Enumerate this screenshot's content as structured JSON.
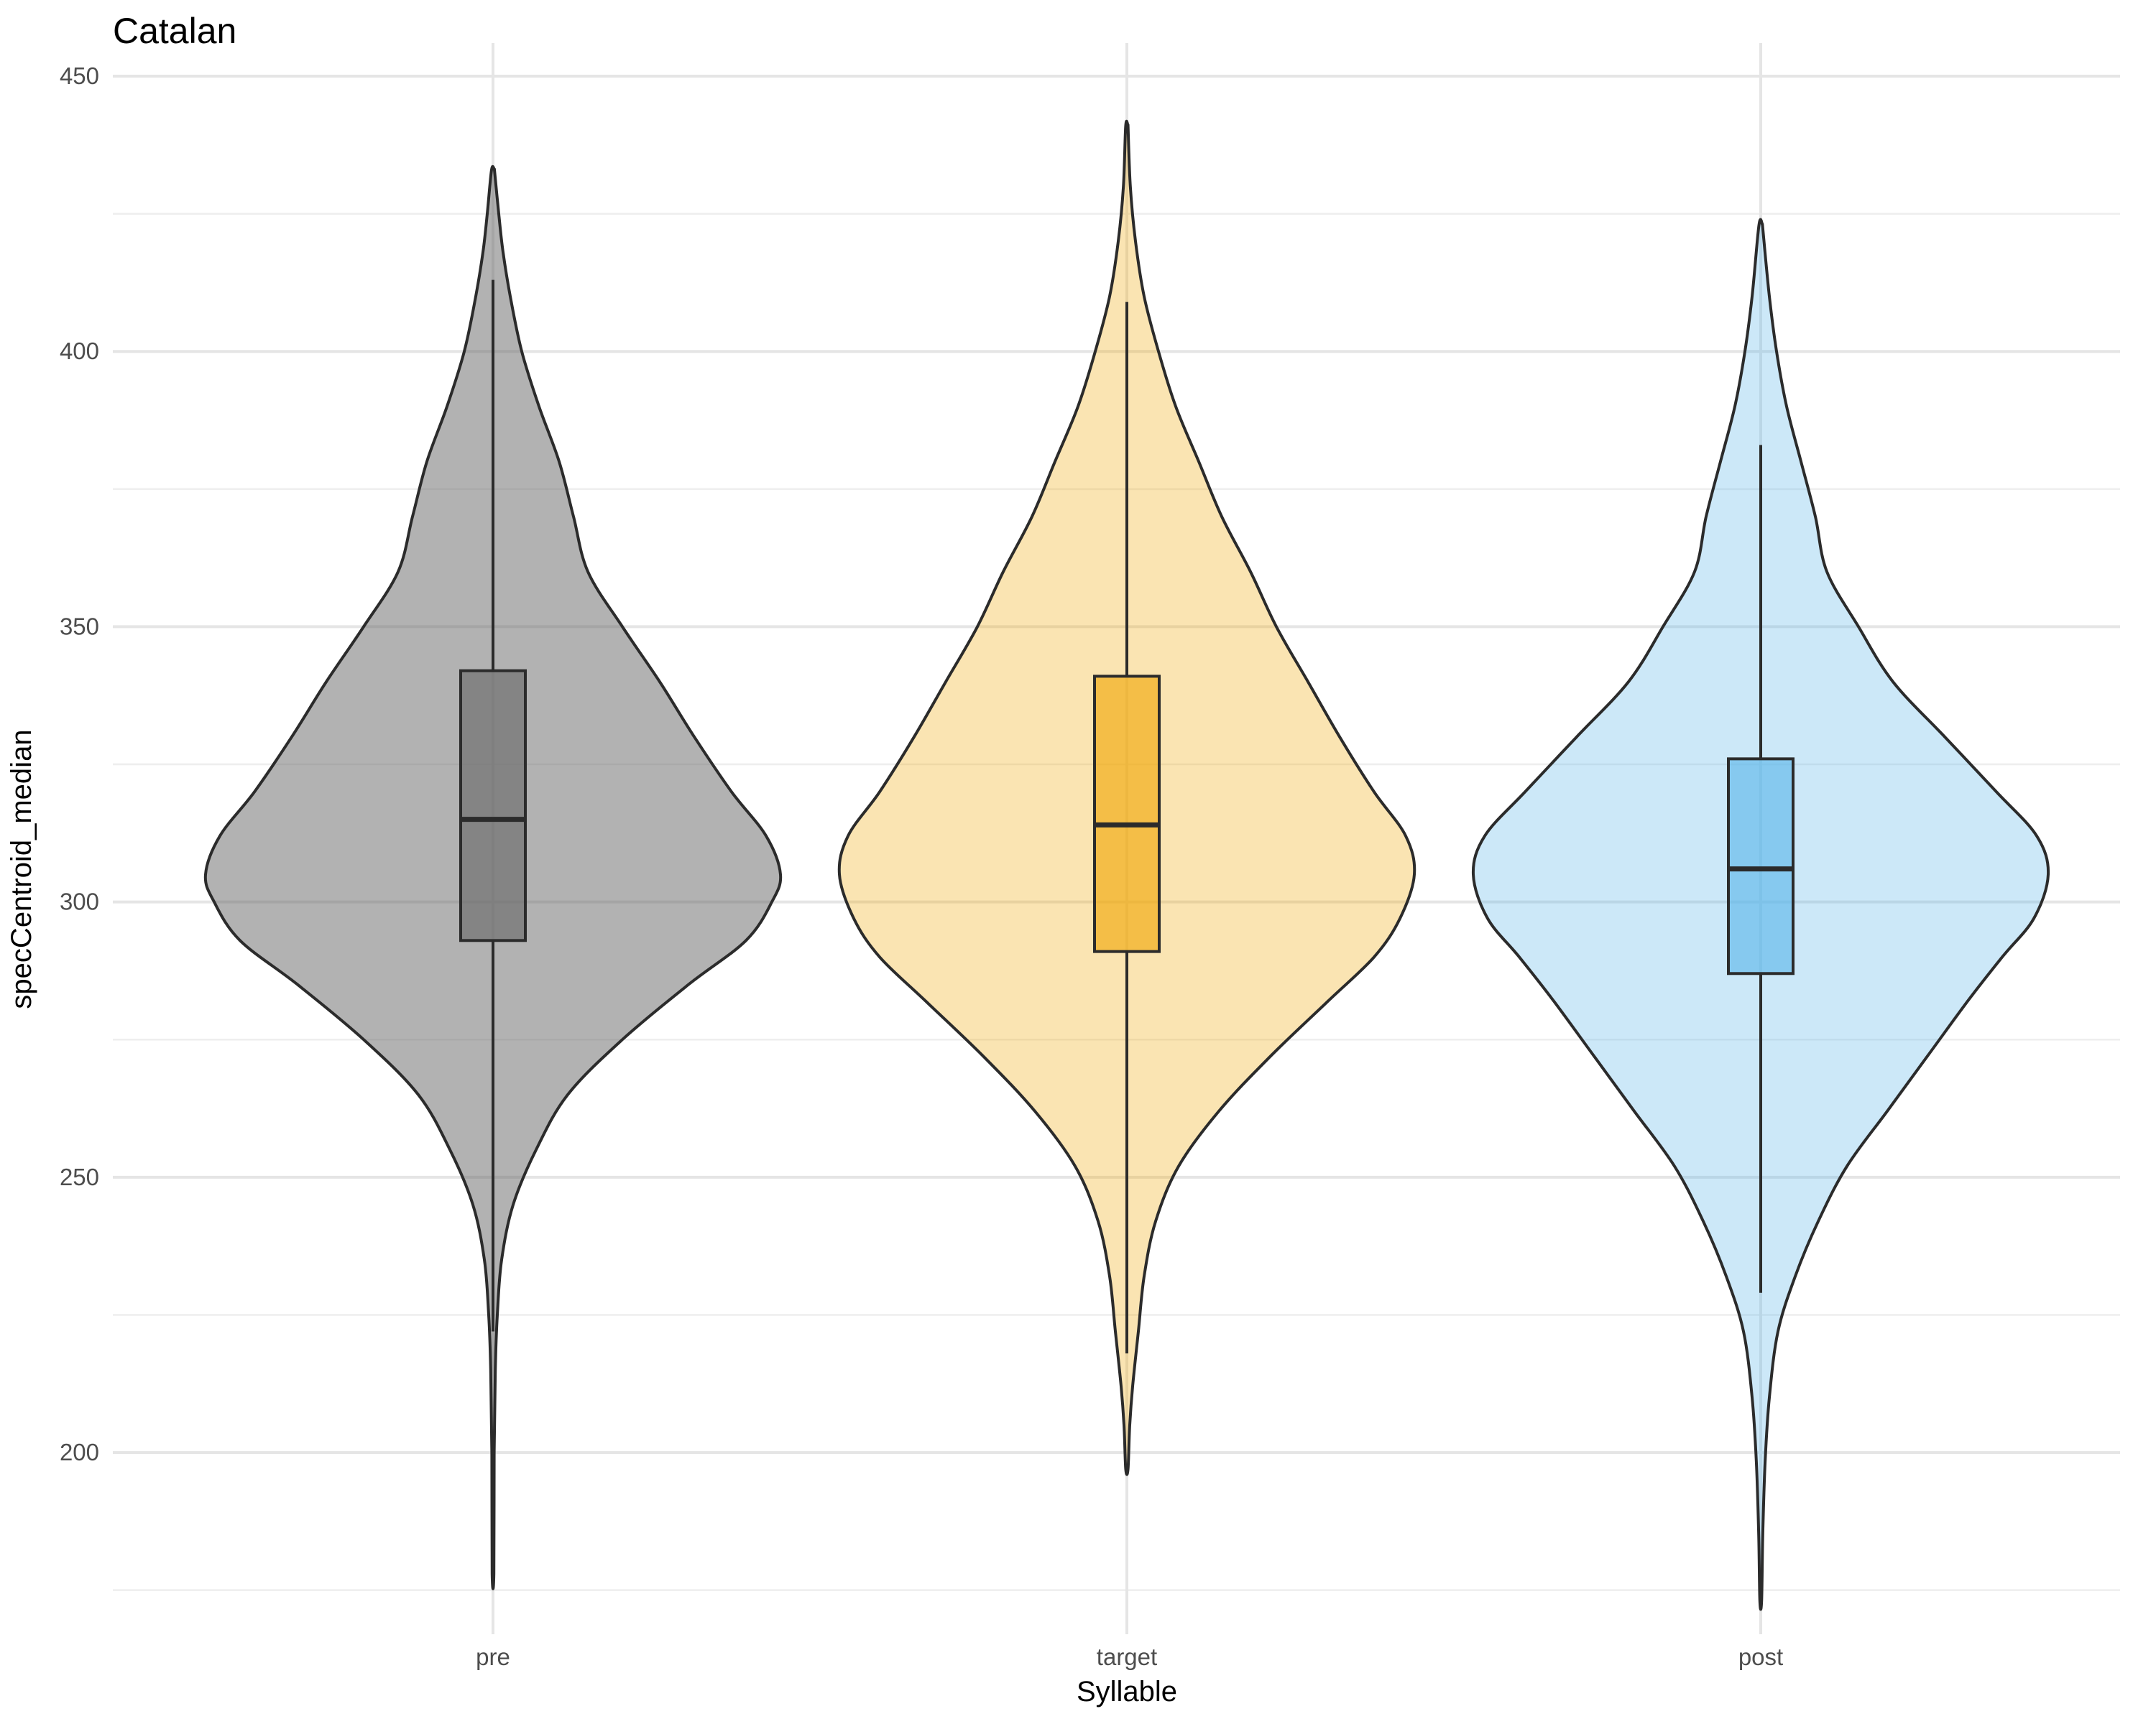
{
  "chart_data": {
    "type": "violin",
    "title": "Catalan",
    "xlabel": "Syllable",
    "ylabel": "specCentroid_median",
    "ylim": [
      167,
      456
    ],
    "y_ticks": [
      200,
      250,
      300,
      350,
      400,
      450
    ],
    "y_minor": [
      175,
      225,
      275,
      325,
      375,
      425
    ],
    "grid": true,
    "legend": "none",
    "categories": [
      "pre",
      "target",
      "post"
    ],
    "series": [
      {
        "category": "pre",
        "color": "#666666",
        "fill_opacity": 0.5,
        "box": {
          "whisker_low": 222,
          "q1": 293,
          "median": 315,
          "q3": 342,
          "whisker_high": 413
        },
        "min": 178,
        "max": 433,
        "density": [
          [
            178,
            0.003
          ],
          [
            200,
            0.004
          ],
          [
            215,
            0.008
          ],
          [
            225,
            0.015
          ],
          [
            235,
            0.03
          ],
          [
            245,
            0.07
          ],
          [
            255,
            0.15
          ],
          [
            265,
            0.26
          ],
          [
            275,
            0.45
          ],
          [
            285,
            0.68
          ],
          [
            293,
            0.88
          ],
          [
            300,
            0.97
          ],
          [
            305,
            1.0
          ],
          [
            312,
            0.95
          ],
          [
            320,
            0.83
          ],
          [
            330,
            0.7
          ],
          [
            340,
            0.58
          ],
          [
            350,
            0.45
          ],
          [
            360,
            0.33
          ],
          [
            370,
            0.28
          ],
          [
            380,
            0.23
          ],
          [
            390,
            0.16
          ],
          [
            400,
            0.1
          ],
          [
            410,
            0.06
          ],
          [
            418,
            0.035
          ],
          [
            425,
            0.02
          ],
          [
            433,
            0.005
          ]
        ]
      },
      {
        "category": "target",
        "color": "#f0a500",
        "fill_opacity": 0.3,
        "box": {
          "whisker_low": 218,
          "q1": 291,
          "median": 314,
          "q3": 341,
          "whisker_high": 409
        },
        "min": 197,
        "max": 441,
        "density": [
          [
            197,
            0.004
          ],
          [
            205,
            0.01
          ],
          [
            212,
            0.02
          ],
          [
            222,
            0.04
          ],
          [
            232,
            0.06
          ],
          [
            242,
            0.1
          ],
          [
            252,
            0.18
          ],
          [
            262,
            0.32
          ],
          [
            272,
            0.5
          ],
          [
            282,
            0.7
          ],
          [
            290,
            0.86
          ],
          [
            297,
            0.95
          ],
          [
            305,
            1.0
          ],
          [
            312,
            0.97
          ],
          [
            320,
            0.86
          ],
          [
            330,
            0.74
          ],
          [
            340,
            0.63
          ],
          [
            350,
            0.52
          ],
          [
            360,
            0.43
          ],
          [
            370,
            0.33
          ],
          [
            380,
            0.25
          ],
          [
            390,
            0.17
          ],
          [
            400,
            0.11
          ],
          [
            410,
            0.06
          ],
          [
            420,
            0.03
          ],
          [
            430,
            0.012
          ],
          [
            441,
            0.004
          ]
        ]
      },
      {
        "category": "post",
        "color": "#56b4e9",
        "fill_opacity": 0.3,
        "box": {
          "whisker_low": 229,
          "q1": 287,
          "median": 306,
          "q3": 326,
          "whisker_high": 383
        },
        "min": 173,
        "max": 423,
        "density": [
          [
            173,
            0.003
          ],
          [
            185,
            0.007
          ],
          [
            198,
            0.015
          ],
          [
            210,
            0.03
          ],
          [
            222,
            0.06
          ],
          [
            232,
            0.12
          ],
          [
            242,
            0.2
          ],
          [
            252,
            0.3
          ],
          [
            262,
            0.44
          ],
          [
            272,
            0.58
          ],
          [
            282,
            0.72
          ],
          [
            290,
            0.84
          ],
          [
            297,
            0.95
          ],
          [
            305,
            1.0
          ],
          [
            312,
            0.96
          ],
          [
            320,
            0.82
          ],
          [
            330,
            0.64
          ],
          [
            340,
            0.46
          ],
          [
            350,
            0.34
          ],
          [
            360,
            0.23
          ],
          [
            370,
            0.19
          ],
          [
            380,
            0.14
          ],
          [
            390,
            0.09
          ],
          [
            400,
            0.055
          ],
          [
            410,
            0.03
          ],
          [
            423,
            0.006
          ]
        ]
      }
    ]
  }
}
